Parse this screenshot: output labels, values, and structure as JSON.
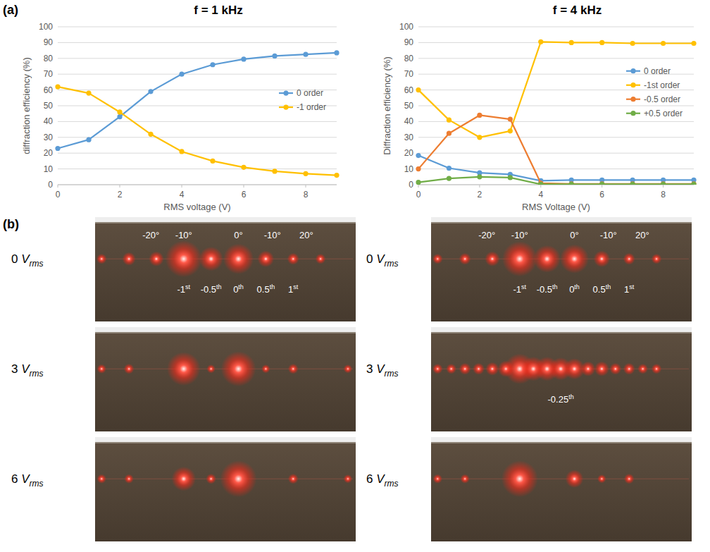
{
  "panel_labels": [
    "(a)",
    "(b)"
  ],
  "chart_data": [
    {
      "type": "line",
      "title": "f = 1 kHz",
      "x_label": "RMS voltage (V)",
      "y_label": "diffraction efficiency (%)",
      "x": [
        0,
        1,
        2,
        3,
        4,
        5,
        6,
        7,
        8,
        9
      ],
      "xlim": [
        0,
        9
      ],
      "xticks": [
        0,
        2,
        4,
        6,
        8
      ],
      "ylim": [
        0,
        100
      ],
      "yticks": [
        0,
        10,
        20,
        30,
        40,
        50,
        60,
        70,
        80,
        90,
        100
      ],
      "grid": true,
      "legend": "right",
      "marker": "circle",
      "series": [
        {
          "name": "0 order",
          "color": "#5b9bd5",
          "values": [
            23,
            28.5,
            43,
            59,
            70,
            76,
            79.5,
            81.5,
            82.5,
            83.5
          ]
        },
        {
          "name": "-1 order",
          "color": "#ffc000",
          "values": [
            62,
            58,
            46,
            32,
            21,
            15,
            11,
            8.5,
            7,
            6
          ]
        }
      ]
    },
    {
      "type": "line",
      "title": "f = 4 kHz",
      "x_label": "RMS Voltage (V)",
      "y_label": "Diffraction efficiency (%)",
      "x": [
        0,
        1,
        2,
        3,
        4,
        5,
        6,
        7,
        8,
        9
      ],
      "xlim": [
        0,
        9
      ],
      "xticks": [
        0,
        2,
        4,
        6,
        8
      ],
      "ylim": [
        0,
        100
      ],
      "yticks": [
        0,
        10,
        20,
        30,
        40,
        50,
        60,
        70,
        80,
        90,
        100
      ],
      "grid": true,
      "legend": "right",
      "marker": "circle",
      "series": [
        {
          "name": "0 order",
          "color": "#5b9bd5",
          "values": [
            18.5,
            10.5,
            7.5,
            6.5,
            2.5,
            3,
            3,
            3,
            3,
            3
          ]
        },
        {
          "name": "-1st order",
          "color": "#ffc000",
          "values": [
            60,
            41,
            30,
            34,
            90.5,
            90,
            90,
            89.5,
            89.5,
            89.5
          ]
        },
        {
          "name": "-0.5 order",
          "color": "#ed7d31",
          "values": [
            10,
            32.5,
            44,
            41.5,
            1,
            0.5,
            0.5,
            0.5,
            0.5,
            0.5
          ]
        },
        {
          "name": "+0.5 order",
          "color": "#70ad47",
          "values": [
            1.5,
            4,
            5,
            4.5,
            0.3,
            0.3,
            0.3,
            0.3,
            0.3,
            0.3
          ]
        }
      ]
    }
  ],
  "photos": {
    "scale_labels": [
      "-20°",
      "-10°",
      "0°",
      "-10°",
      "20°"
    ],
    "columns": [
      {
        "rows": [
          {
            "voltage": 0,
            "unit": "V",
            "unit_sub": "rms",
            "spots": [
              {
                "order": -2.5,
                "intensity": 0.15
              },
              {
                "order": -2,
                "intensity": 0.25
              },
              {
                "order": -1.5,
                "intensity": 0.3
              },
              {
                "order": -1,
                "intensity": 1
              },
              {
                "order": -0.5,
                "intensity": 0.6
              },
              {
                "order": 0,
                "intensity": 0.8
              },
              {
                "order": 0.5,
                "intensity": 0.35
              },
              {
                "order": 1,
                "intensity": 0.2
              },
              {
                "order": 1.5,
                "intensity": 0.15
              }
            ],
            "order_labels": [
              {
                "order": -1,
                "label": "-1st"
              },
              {
                "order": -0.5,
                "label": "-0.5th"
              },
              {
                "order": 0,
                "label": "0th"
              },
              {
                "order": 0.5,
                "label": "0.5th"
              },
              {
                "order": 1,
                "label": "1st"
              }
            ]
          },
          {
            "voltage": 3,
            "unit": "V",
            "unit_sub": "rms",
            "spots": [
              {
                "order": -2.5,
                "intensity": 0.12
              },
              {
                "order": -2,
                "intensity": 0.15
              },
              {
                "order": -1,
                "intensity": 0.9
              },
              {
                "order": -0.5,
                "intensity": 0.1
              },
              {
                "order": 0,
                "intensity": 0.95
              },
              {
                "order": 0.5,
                "intensity": 0.1
              },
              {
                "order": 1,
                "intensity": 0.15
              },
              {
                "order": 2,
                "intensity": 0.1
              }
            ],
            "order_labels": []
          },
          {
            "voltage": 6,
            "unit": "V",
            "unit_sub": "rms",
            "spots": [
              {
                "order": -2.5,
                "intensity": 0.12
              },
              {
                "order": -2,
                "intensity": 0.12
              },
              {
                "order": -1,
                "intensity": 0.6
              },
              {
                "order": -0.5,
                "intensity": 0.15
              },
              {
                "order": 0,
                "intensity": 1
              },
              {
                "order": 1,
                "intensity": 0.15
              },
              {
                "order": 2,
                "intensity": 0.1
              }
            ],
            "order_labels": []
          }
        ]
      },
      {
        "rows": [
          {
            "voltage": 0,
            "unit": "V",
            "unit_sub": "rms",
            "spots": [
              {
                "order": -2.5,
                "intensity": 0.15
              },
              {
                "order": -2,
                "intensity": 0.2
              },
              {
                "order": -1.5,
                "intensity": 0.3
              },
              {
                "order": -1,
                "intensity": 0.95
              },
              {
                "order": -0.5,
                "intensity": 0.7
              },
              {
                "order": 0,
                "intensity": 0.75
              },
              {
                "order": 0.5,
                "intensity": 0.35
              },
              {
                "order": 1,
                "intensity": 0.2
              },
              {
                "order": 1.5,
                "intensity": 0.15
              }
            ],
            "order_labels": [
              {
                "order": -1,
                "label": "-1st"
              },
              {
                "order": -0.5,
                "label": "-0.5th"
              },
              {
                "order": 0,
                "label": "0th"
              },
              {
                "order": 0.5,
                "label": "0.5th"
              },
              {
                "order": 1,
                "label": "1st"
              }
            ]
          },
          {
            "voltage": 3,
            "unit": "V",
            "unit_sub": "rms",
            "spots": [
              {
                "order": -2.5,
                "intensity": 0.15
              },
              {
                "order": -2.25,
                "intensity": 0.15
              },
              {
                "order": -2,
                "intensity": 0.2
              },
              {
                "order": -1.75,
                "intensity": 0.2
              },
              {
                "order": -1.5,
                "intensity": 0.25
              },
              {
                "order": -1.25,
                "intensity": 0.35
              },
              {
                "order": -1,
                "intensity": 0.8
              },
              {
                "order": -0.75,
                "intensity": 0.6
              },
              {
                "order": -0.5,
                "intensity": 0.6
              },
              {
                "order": -0.25,
                "intensity": 0.55
              },
              {
                "order": 0,
                "intensity": 0.5
              },
              {
                "order": 0.25,
                "intensity": 0.3
              },
              {
                "order": 0.5,
                "intensity": 0.3
              },
              {
                "order": 0.75,
                "intensity": 0.2
              },
              {
                "order": 1,
                "intensity": 0.2
              },
              {
                "order": 1.25,
                "intensity": 0.15
              },
              {
                "order": 1.5,
                "intensity": 0.15
              }
            ],
            "order_labels": [
              {
                "order": -0.25,
                "label": "-0.25th"
              }
            ]
          },
          {
            "voltage": 6,
            "unit": "V",
            "unit_sub": "rms",
            "spots": [
              {
                "order": -2.5,
                "intensity": 0.12
              },
              {
                "order": -2,
                "intensity": 0.12
              },
              {
                "order": -1,
                "intensity": 1
              },
              {
                "order": 0,
                "intensity": 0.4
              },
              {
                "order": 0.5,
                "intensity": 0.1
              },
              {
                "order": 1,
                "intensity": 0.15
              }
            ],
            "order_labels": []
          }
        ]
      }
    ]
  }
}
